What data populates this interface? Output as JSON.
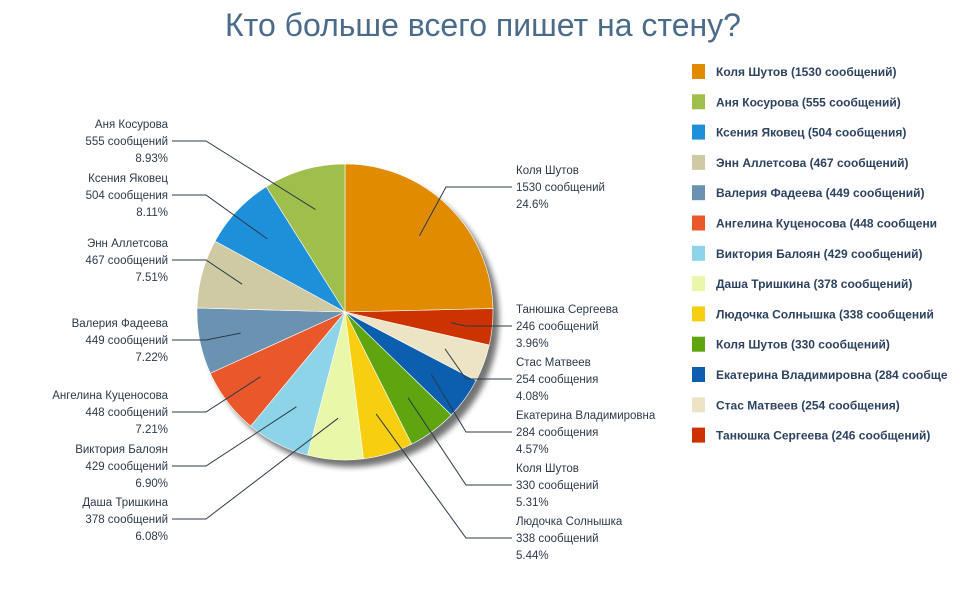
{
  "chart_data": {
    "type": "pie",
    "title": "Кто больше всего пишет на стену?",
    "slices": [
      {
        "label": "Коля Шутов",
        "value": 1530,
        "value_text": "1530 сообщений",
        "percent": "24.6%",
        "color": "#e08b00",
        "legend": "Коля Шутов (1530 сообщений)"
      },
      {
        "label": "Танюшка Сергеева",
        "value": 246,
        "value_text": "246 сообщений",
        "percent": "3.96%",
        "color": "#cc3300",
        "legend": "Танюшка Сергеева (246 сообщений)"
      },
      {
        "label": "Стас Матвеев",
        "value": 254,
        "value_text": "254 сообщения",
        "percent": "4.08%",
        "color": "#ece4c4",
        "legend": "Стас Матвеев (254 сообщения)"
      },
      {
        "label": "Екатерина Владимировна",
        "value": 284,
        "value_text": "284 сообщения",
        "percent": "4.57%",
        "color": "#0b5fae",
        "legend": "Екатерина Владимировна (284 сообще"
      },
      {
        "label": "Коля Шутов",
        "value": 330,
        "value_text": "330 сообщений",
        "percent": "5.31%",
        "color": "#5ea50f",
        "legend": "Коля Шутов (330 сообщений)"
      },
      {
        "label": "Людочка Солнышка",
        "value": 338,
        "value_text": "338 сообщений",
        "percent": "5.44%",
        "color": "#f8cf10",
        "legend": "Людочка Солнышка (338 сообщений"
      },
      {
        "label": "Даша Тришкина",
        "value": 378,
        "value_text": "378 сообщений",
        "percent": "6.08%",
        "color": "#e9f7a8",
        "legend": "Даша Тришкина (378 сообщений)"
      },
      {
        "label": "Виктория Балоян",
        "value": 429,
        "value_text": "429 сообщений",
        "percent": "6.90%",
        "color": "#8dd4e8",
        "legend": "Виктория Балоян (429 сообщений)"
      },
      {
        "label": "Ангелина Куценосова",
        "value": 448,
        "value_text": "448 сообщений",
        "percent": "7.21%",
        "color": "#e9572a",
        "legend": "Ангелина Куценосова (448 сообщени"
      },
      {
        "label": "Валерия Фадеева",
        "value": 449,
        "value_text": "449 сообщений",
        "percent": "7.22%",
        "color": "#6a93b2",
        "legend": "Валерия Фадеева (449 сообщений)"
      },
      {
        "label": "Энн Аллетсова",
        "value": 467,
        "value_text": "467 сообщений",
        "percent": "7.51%",
        "color": "#cfcaa3",
        "legend": "Энн Аллетсова (467 сообщений)"
      },
      {
        "label": "Ксения Яковец",
        "value": 504,
        "value_text": "504 сообщения",
        "percent": "8.11%",
        "color": "#1e90d9",
        "legend": "Ксения Яковец (504 сообщения)"
      },
      {
        "label": "Аня Косурова",
        "value": 555,
        "value_text": "555 сообщений",
        "percent": "8.93%",
        "color": "#9fbe4b",
        "legend": "Аня Косурова (555 сообщений)"
      }
    ],
    "legend_order": [
      0,
      12,
      11,
      10,
      9,
      8,
      7,
      6,
      5,
      4,
      3,
      2,
      1
    ],
    "legend_position": "right"
  }
}
